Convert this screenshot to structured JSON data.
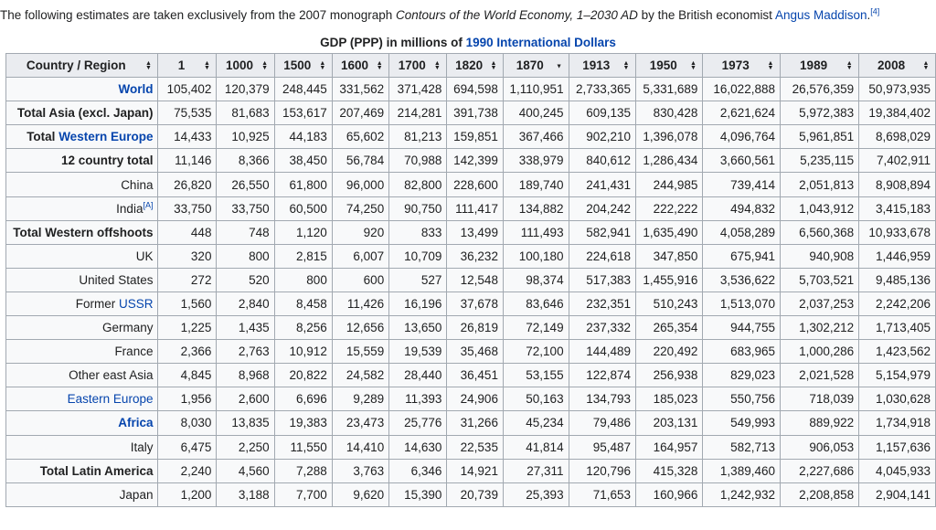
{
  "intro": {
    "prefix": "The following estimates are taken exclusively from the 2007 monograph ",
    "book_title": "Contours of the World Economy, 1–2030 AD",
    "middle": " by the British economist ",
    "author_link": "Angus Maddison",
    "period": ".",
    "ref": "[4]"
  },
  "caption": {
    "prefix": "GDP (PPP) in millions of ",
    "link": "1990 International Dollars"
  },
  "table": {
    "headers": [
      "Country / Region",
      "1",
      "1000",
      "1500",
      "1600",
      "1700",
      "1820",
      "1870",
      "1913",
      "1950",
      "1973",
      "1989",
      "2008"
    ],
    "sort_icons": [
      "sort-both-icon",
      "sort-both-icon",
      "sort-both-icon",
      "sort-both-icon",
      "sort-both-icon",
      "sort-both-icon",
      "sort-both-icon",
      "sort-desc-icon",
      "sort-both-icon",
      "sort-both-icon",
      "sort-both-icon",
      "sort-both-icon",
      "sort-both-icon"
    ],
    "rows": [
      {
        "name": "World",
        "link": true,
        "bold": true,
        "values": [
          "105,402",
          "120,379",
          "248,445",
          "331,562",
          "371,428",
          "694,598",
          "1,110,951",
          "2,733,365",
          "5,331,689",
          "16,022,888",
          "26,576,359",
          "50,973,935"
        ]
      },
      {
        "name": "Total Asia (excl. Japan)",
        "bold": true,
        "values": [
          "75,535",
          "81,683",
          "153,617",
          "207,469",
          "214,281",
          "391,738",
          "400,245",
          "609,135",
          "830,428",
          "2,621,624",
          "5,972,383",
          "19,384,402"
        ]
      },
      {
        "name_prefix": "Total ",
        "name_link": "Western Europe",
        "bold": true,
        "values": [
          "14,433",
          "10,925",
          "44,183",
          "65,602",
          "81,213",
          "159,851",
          "367,466",
          "902,210",
          "1,396,078",
          "4,096,764",
          "5,961,851",
          "8,698,029"
        ]
      },
      {
        "name": "12 country total",
        "bold": true,
        "values": [
          "11,146",
          "8,366",
          "38,450",
          "56,784",
          "70,988",
          "142,399",
          "338,979",
          "840,612",
          "1,286,434",
          "3,660,561",
          "5,235,115",
          "7,402,911"
        ]
      },
      {
        "name": "China",
        "values": [
          "26,820",
          "26,550",
          "61,800",
          "96,000",
          "82,800",
          "228,600",
          "189,740",
          "241,431",
          "244,985",
          "739,414",
          "2,051,813",
          "8,908,894"
        ]
      },
      {
        "name": "India",
        "sup": "[A]",
        "values": [
          "33,750",
          "33,750",
          "60,500",
          "74,250",
          "90,750",
          "111,417",
          "134,882",
          "204,242",
          "222,222",
          "494,832",
          "1,043,912",
          "3,415,183"
        ]
      },
      {
        "name": "Total Western offshoots",
        "bold": true,
        "values": [
          "448",
          "748",
          "1,120",
          "920",
          "833",
          "13,499",
          "111,493",
          "582,941",
          "1,635,490",
          "4,058,289",
          "6,560,368",
          "10,933,678"
        ]
      },
      {
        "name": "UK",
        "values": [
          "320",
          "800",
          "2,815",
          "6,007",
          "10,709",
          "36,232",
          "100,180",
          "224,618",
          "347,850",
          "675,941",
          "940,908",
          "1,446,959"
        ]
      },
      {
        "name": "United States",
        "values": [
          "272",
          "520",
          "800",
          "600",
          "527",
          "12,548",
          "98,374",
          "517,383",
          "1,455,916",
          "3,536,622",
          "5,703,521",
          "9,485,136"
        ]
      },
      {
        "name_prefix": "Former ",
        "name_link": "USSR",
        "values": [
          "1,560",
          "2,840",
          "8,458",
          "11,426",
          "16,196",
          "37,678",
          "83,646",
          "232,351",
          "510,243",
          "1,513,070",
          "2,037,253",
          "2,242,206"
        ]
      },
      {
        "name": "Germany",
        "values": [
          "1,225",
          "1,435",
          "8,256",
          "12,656",
          "13,650",
          "26,819",
          "72,149",
          "237,332",
          "265,354",
          "944,755",
          "1,302,212",
          "1,713,405"
        ]
      },
      {
        "name": "France",
        "values": [
          "2,366",
          "2,763",
          "10,912",
          "15,559",
          "19,539",
          "35,468",
          "72,100",
          "144,489",
          "220,492",
          "683,965",
          "1,000,286",
          "1,423,562"
        ]
      },
      {
        "name": "Other east Asia",
        "values": [
          "4,845",
          "8,968",
          "20,822",
          "24,582",
          "28,440",
          "36,451",
          "53,155",
          "122,874",
          "256,938",
          "829,023",
          "2,021,528",
          "5,154,979"
        ]
      },
      {
        "name": "Eastern Europe",
        "link": true,
        "values": [
          "1,956",
          "2,600",
          "6,696",
          "9,289",
          "11,393",
          "24,906",
          "50,163",
          "134,793",
          "185,023",
          "550,756",
          "718,039",
          "1,030,628"
        ]
      },
      {
        "name": "Africa",
        "link": true,
        "bold": true,
        "values": [
          "8,030",
          "13,835",
          "19,383",
          "23,473",
          "25,776",
          "31,266",
          "45,234",
          "79,486",
          "203,131",
          "549,993",
          "889,922",
          "1,734,918"
        ]
      },
      {
        "name": "Italy",
        "values": [
          "6,475",
          "2,250",
          "11,550",
          "14,410",
          "14,630",
          "22,535",
          "41,814",
          "95,487",
          "164,957",
          "582,713",
          "906,053",
          "1,157,636"
        ]
      },
      {
        "name": "Total Latin America",
        "bold": true,
        "values": [
          "2,240",
          "4,560",
          "7,288",
          "3,763",
          "6,346",
          "14,921",
          "27,311",
          "120,796",
          "415,328",
          "1,389,460",
          "2,227,686",
          "4,045,933"
        ]
      },
      {
        "name": "Japan",
        "values": [
          "1,200",
          "3,188",
          "7,700",
          "9,620",
          "15,390",
          "20,739",
          "25,393",
          "71,653",
          "160,966",
          "1,242,932",
          "2,208,858",
          "2,904,141"
        ]
      }
    ]
  }
}
